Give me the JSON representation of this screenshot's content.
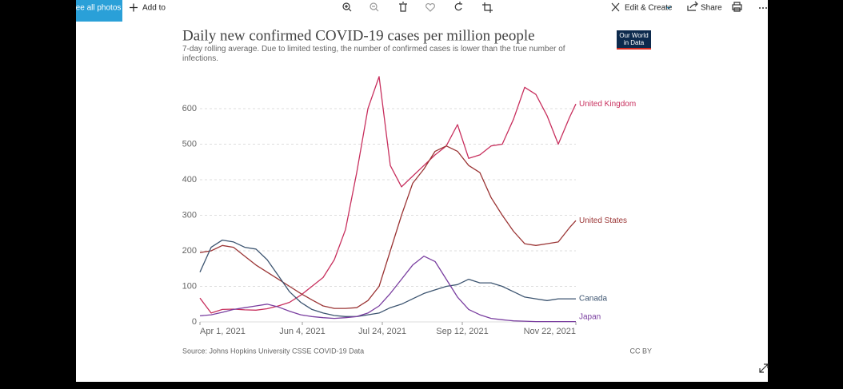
{
  "toolbar": {
    "see_all": "See all photos",
    "add_to": "Add to",
    "edit_create": "Edit & Create",
    "share": "Share"
  },
  "chart_data": {
    "type": "line",
    "title": "Daily new confirmed COVID-19 cases per million people",
    "subtitle": "7-day rolling average. Due to limited testing, the number of confirmed cases is lower than the true number of infections.",
    "logo": [
      "Our World",
      "in Data"
    ],
    "source": "Source: Johns Hopkins University CSSE COVID-19 Data",
    "license": "CC BY",
    "x": [
      "2021-04-01",
      "2021-04-08",
      "2021-04-15",
      "2021-04-22",
      "2021-04-29",
      "2021-05-06",
      "2021-05-13",
      "2021-05-20",
      "2021-05-27",
      "2021-06-03",
      "2021-06-10",
      "2021-06-17",
      "2021-06-24",
      "2021-07-01",
      "2021-07-08",
      "2021-07-15",
      "2021-07-22",
      "2021-07-29",
      "2021-08-05",
      "2021-08-12",
      "2021-08-19",
      "2021-08-26",
      "2021-09-02",
      "2021-09-09",
      "2021-09-16",
      "2021-09-23",
      "2021-09-30",
      "2021-10-07",
      "2021-10-14",
      "2021-10-21",
      "2021-10-28",
      "2021-11-04",
      "2021-11-11",
      "2021-11-18",
      "2021-11-22"
    ],
    "xlim": [
      "2021-04-01",
      "2021-11-22"
    ],
    "xticks": [
      {
        "value": "2021-04-01",
        "label": "Apr 1, 2021"
      },
      {
        "value": "2021-06-04",
        "label": "Jun 4, 2021"
      },
      {
        "value": "2021-07-24",
        "label": "Jul 24, 2021"
      },
      {
        "value": "2021-09-12",
        "label": "Sep 12, 2021"
      },
      {
        "value": "2021-11-22",
        "label": "Nov 22, 2021"
      }
    ],
    "ylim": [
      0,
      700
    ],
    "yticks": [
      0,
      100,
      200,
      300,
      400,
      500,
      600
    ],
    "grid": true,
    "series": [
      {
        "name": "United Kingdom",
        "color": "#c8305e",
        "values": [
          67,
          25,
          35,
          36,
          34,
          33,
          37,
          45,
          55,
          75,
          100,
          125,
          175,
          260,
          420,
          600,
          690,
          440,
          380,
          410,
          440,
          470,
          495,
          555,
          460,
          470,
          495,
          500,
          570,
          660,
          640,
          580,
          500,
          575,
          613
        ]
      },
      {
        "name": "United States",
        "color": "#9b3535",
        "values": [
          195,
          200,
          215,
          210,
          185,
          160,
          140,
          120,
          100,
          80,
          62,
          45,
          38,
          38,
          40,
          60,
          100,
          200,
          300,
          390,
          430,
          480,
          495,
          480,
          440,
          420,
          350,
          300,
          255,
          220,
          215,
          220,
          225,
          265,
          285
        ]
      },
      {
        "name": "Canada",
        "color": "#3c5470",
        "values": [
          140,
          210,
          230,
          225,
          210,
          205,
          175,
          130,
          85,
          55,
          35,
          25,
          18,
          15,
          15,
          20,
          25,
          40,
          50,
          65,
          80,
          90,
          100,
          105,
          120,
          110,
          110,
          100,
          85,
          70,
          65,
          60,
          65,
          65,
          65
        ]
      },
      {
        "name": "Japan",
        "color": "#7a3fa0",
        "values": [
          17,
          20,
          27,
          35,
          40,
          45,
          50,
          42,
          30,
          20,
          15,
          12,
          10,
          12,
          15,
          25,
          45,
          80,
          120,
          160,
          185,
          170,
          120,
          70,
          35,
          20,
          10,
          6,
          3,
          2,
          1,
          1,
          1,
          1,
          1
        ]
      }
    ]
  }
}
